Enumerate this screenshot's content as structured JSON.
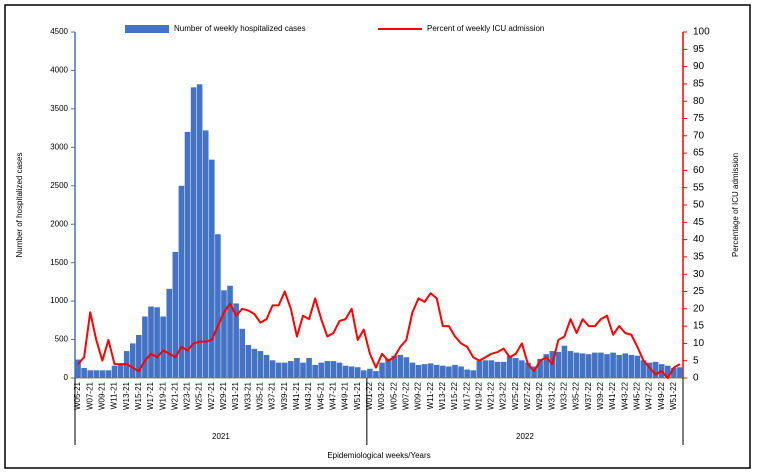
{
  "chart_data": {
    "type": "combo",
    "x_label": "Epidemiological  weeks/Years",
    "y_label": "Number of hospitalized  cases",
    "y2_label": "Percentage  of ICU admission",
    "groups": [
      "2021",
      "2022"
    ],
    "categories": [
      "W05-21",
      null,
      "W07-21",
      null,
      "W09-21",
      null,
      "W11-21",
      null,
      "W13-21",
      null,
      "W15-21",
      null,
      "W17-21",
      null,
      "W19-21",
      null,
      "W21-21",
      null,
      "W23-21",
      null,
      "W25-21",
      null,
      "W27-21",
      null,
      "W29-21",
      null,
      "W31-21",
      null,
      "W33-21",
      null,
      "W35-21",
      null,
      "W37-21",
      null,
      "W39-21",
      null,
      "W41-21",
      null,
      "W43-21",
      null,
      "W45-21",
      null,
      "W47-21",
      null,
      "W49-21",
      null,
      "W51-21",
      null,
      "W01-22",
      null,
      "W03-22",
      null,
      "W05-22",
      null,
      "W07-22",
      null,
      "W09-22",
      null,
      "W11-22",
      null,
      "W13-22",
      null,
      "W15-22",
      null,
      "W17-22",
      null,
      "W19-22",
      null,
      "W21-22",
      null,
      "W23-22",
      null,
      "W25-22",
      null,
      "W27-22",
      null,
      "W29-22",
      null,
      "W31-22",
      null,
      "W33-22",
      null,
      "W35-22",
      null,
      "W37-22",
      null,
      "W39-22",
      null,
      "W41-22",
      null,
      "W43-22",
      null,
      "W45-22",
      null,
      "W47-22",
      null,
      "W49-22",
      null,
      "W51-22",
      null
    ],
    "series": [
      {
        "name": "Number of weekly hospitalized cases",
        "type": "bar",
        "color": "#4472c4",
        "values": [
          240,
          130,
          100,
          100,
          100,
          100,
          160,
          170,
          350,
          450,
          560,
          800,
          930,
          920,
          800,
          1160,
          1640,
          2500,
          3200,
          3780,
          3820,
          3220,
          2840,
          1870,
          1140,
          1200,
          970,
          640,
          430,
          380,
          350,
          300,
          230,
          200,
          200,
          220,
          260,
          200,
          260,
          170,
          200,
          220,
          220,
          200,
          160,
          150,
          140,
          100,
          120,
          90,
          200,
          250,
          290,
          300,
          270,
          200,
          170,
          180,
          190,
          170,
          160,
          150,
          170,
          150,
          110,
          100,
          220,
          230,
          230,
          210,
          210,
          290,
          260,
          230,
          200,
          150,
          250,
          310,
          350,
          340,
          420,
          350,
          330,
          320,
          310,
          330,
          330,
          310,
          330,
          300,
          320,
          300,
          290,
          230,
          200,
          210,
          180,
          160,
          130,
          140
        ]
      },
      {
        "name": "Percent of weekly ICU admission",
        "type": "line",
        "axis": "y2",
        "color": "#ff0000",
        "values": [
          4,
          6,
          19,
          11,
          5,
          11,
          4,
          4,
          4,
          3,
          2,
          5,
          7,
          6,
          8,
          7,
          6,
          9,
          8,
          10,
          10.5,
          10.5,
          11,
          15,
          19,
          21.5,
          18,
          20,
          19.5,
          18.5,
          16,
          17,
          21,
          21,
          25,
          20,
          12,
          18,
          17,
          23,
          17,
          12,
          13,
          16.5,
          17,
          20,
          11,
          14,
          7,
          3,
          7,
          5,
          6,
          9,
          11,
          19,
          23,
          22,
          24.5,
          23,
          15,
          15,
          12,
          10,
          9,
          6,
          5,
          6,
          7,
          7.5,
          8.5,
          6,
          7,
          10,
          4,
          2,
          5,
          6,
          4,
          11,
          12,
          17,
          13,
          17,
          15,
          15,
          17,
          18,
          12.5,
          15,
          13,
          12.5,
          9,
          5,
          3,
          1,
          2,
          0,
          3,
          4
        ]
      }
    ],
    "ylim": [
      0,
      4500
    ],
    "yticks": [
      0,
      500,
      1000,
      1500,
      2000,
      2500,
      3000,
      3500,
      4000,
      4500
    ],
    "y2lim": [
      0,
      100
    ],
    "y2ticks": [
      0,
      5,
      10,
      15,
      20,
      25,
      30,
      35,
      40,
      45,
      50,
      55,
      60,
      65,
      70,
      75,
      80,
      85,
      90,
      95,
      100
    ],
    "legend": "top"
  }
}
